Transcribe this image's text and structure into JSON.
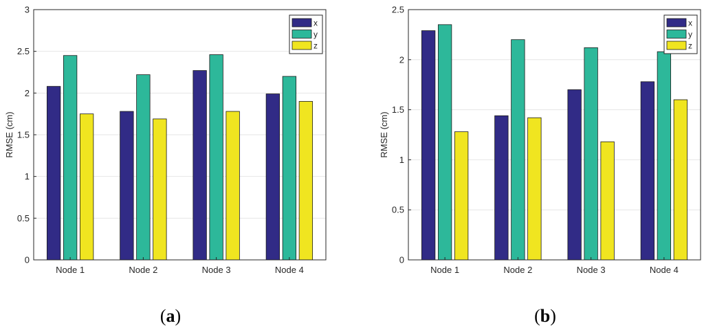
{
  "figure": {
    "panels": [
      {
        "label_open": "(",
        "label_letter": "a",
        "label_close": ")"
      },
      {
        "label_open": "(",
        "label_letter": "b",
        "label_close": ")"
      }
    ]
  },
  "chart_data": [
    {
      "type": "bar",
      "title": "",
      "xlabel": "",
      "ylabel": "RMSE (cm)",
      "ylim": [
        0,
        3
      ],
      "yticks": [
        "0",
        "0.5",
        "1",
        "1.5",
        "2",
        "2.5",
        "3"
      ],
      "ytick_values": [
        0,
        0.5,
        1,
        1.5,
        2,
        2.5,
        3
      ],
      "grid": true,
      "legend_position": "top-right",
      "categories": [
        "Node 1",
        "Node 2",
        "Node 3",
        "Node 4"
      ],
      "series": [
        {
          "name": "x",
          "color": "#312b86",
          "values": [
            2.08,
            1.78,
            2.27,
            1.99
          ]
        },
        {
          "name": "y",
          "color": "#2db89a",
          "values": [
            2.45,
            2.22,
            2.46,
            2.2
          ]
        },
        {
          "name": "z",
          "color": "#f0e520",
          "values": [
            1.75,
            1.69,
            1.78,
            1.9
          ]
        }
      ]
    },
    {
      "type": "bar",
      "title": "",
      "xlabel": "",
      "ylabel": "RMSE (cm)",
      "ylim": [
        0,
        2.5
      ],
      "yticks": [
        "0",
        "0.5",
        "1",
        "1.5",
        "2",
        "2.5"
      ],
      "ytick_values": [
        0,
        0.5,
        1,
        1.5,
        2,
        2.5
      ],
      "grid": true,
      "legend_position": "top-right",
      "categories": [
        "Node 1",
        "Node 2",
        "Node 3",
        "Node 4"
      ],
      "series": [
        {
          "name": "x",
          "color": "#312b86",
          "values": [
            2.29,
            1.44,
            1.7,
            1.78
          ]
        },
        {
          "name": "y",
          "color": "#2db89a",
          "values": [
            2.35,
            2.2,
            2.12,
            2.08
          ]
        },
        {
          "name": "z",
          "color": "#f0e520",
          "values": [
            1.28,
            1.42,
            1.18,
            1.6
          ]
        }
      ]
    }
  ]
}
